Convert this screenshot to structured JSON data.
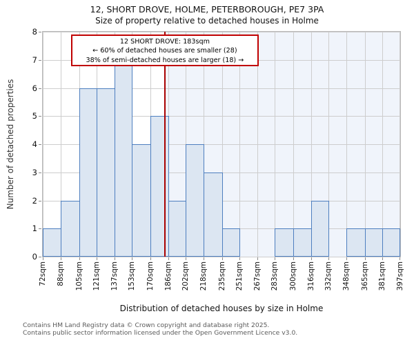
{
  "title": "12, SHORT DROVE, HOLME, PETERBOROUGH, PE7 3PA",
  "subtitle": "Size of property relative to detached houses in Holme",
  "chart_data": {
    "type": "bar",
    "title": "12, SHORT DROVE, HOLME, PETERBOROUGH, PE7 3PA",
    "subtitle": "Size of property relative to detached houses in Holme",
    "xlabel": "Distribution of detached houses by size in Holme",
    "ylabel": "Number of detached properties",
    "bin_edges_sqm": [
      72,
      88,
      105,
      121,
      137,
      153,
      170,
      186,
      202,
      218,
      235,
      251,
      267,
      283,
      300,
      316,
      332,
      348,
      365,
      381,
      397
    ],
    "x_tick_labels": [
      "72sqm",
      "88sqm",
      "105sqm",
      "121sqm",
      "137sqm",
      "153sqm",
      "170sqm",
      "186sqm",
      "202sqm",
      "218sqm",
      "235sqm",
      "251sqm",
      "267sqm",
      "283sqm",
      "300sqm",
      "316sqm",
      "332sqm",
      "348sqm",
      "365sqm",
      "381sqm",
      "397sqm"
    ],
    "values": [
      1,
      2,
      6,
      6,
      7,
      4,
      5,
      2,
      4,
      3,
      1,
      0,
      0,
      1,
      1,
      2,
      0,
      1,
      1,
      1
    ],
    "ylim": [
      0,
      8
    ],
    "y_ticks": [
      0,
      1,
      2,
      3,
      4,
      5,
      6,
      7,
      8
    ],
    "grid": true,
    "legend": false,
    "marker": {
      "x_sqm": 183,
      "color": "#a90000"
    },
    "highlight_region": {
      "from_sqm": 183,
      "to_sqm": 397,
      "color": "#f0f4fb"
    },
    "annotation": {
      "lines": [
        "12 SHORT DROVE: 183sqm",
        "← 60% of detached houses are smaller (28)",
        "38% of semi-detached houses are larger (18) →"
      ],
      "border_color": "#c00000"
    },
    "colors": {
      "bar_fill": "#dce6f2",
      "bar_edge": "#4d7ebf",
      "grid_line": "#cdcdcd",
      "plot_border": "#b9b9b9"
    }
  },
  "footer": {
    "line1": "Contains HM Land Registry data © Crown copyright and database right 2025.",
    "line2": "Contains public sector information licensed under the Open Government Licence v3.0."
  }
}
